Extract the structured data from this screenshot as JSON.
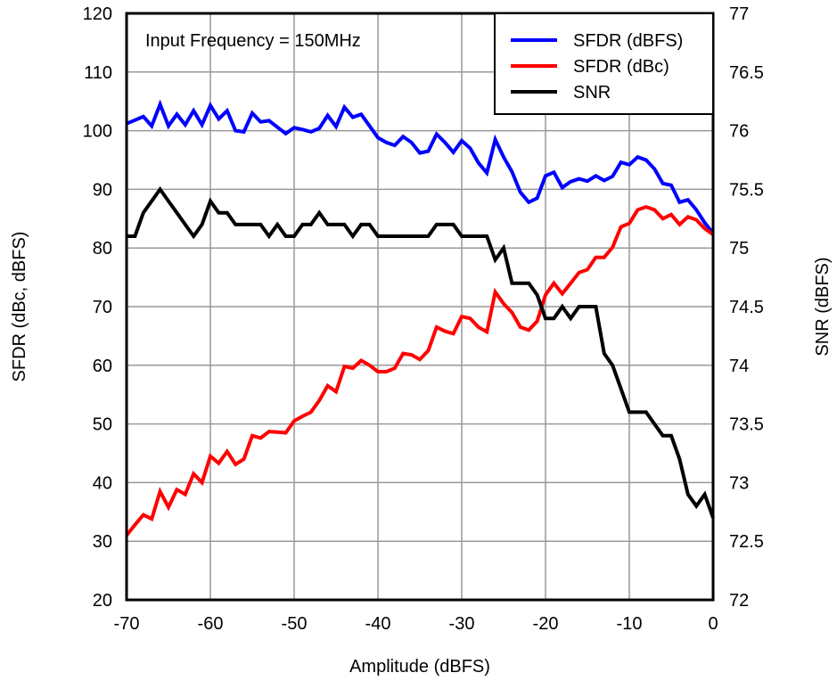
{
  "chart_data": {
    "type": "line",
    "annotation": "Input Frequency = 150MHz",
    "xlabel": "Amplitude (dBFS)",
    "ylabel": "SFDR (dBc, dBFS)",
    "y2label": "SNR (dBFS)",
    "xlim": [
      -70,
      0
    ],
    "ylim": [
      20,
      120
    ],
    "y2lim": [
      72,
      77
    ],
    "xticks": [
      -70,
      -60,
      -50,
      -40,
      -30,
      -20,
      -10,
      0
    ],
    "yticks": [
      20,
      30,
      40,
      50,
      60,
      70,
      80,
      90,
      100,
      110,
      120
    ],
    "y2ticks": [
      "72",
      "72.5",
      "73",
      "73.5",
      "74",
      "74.5",
      "75",
      "75.5",
      "76",
      "76.5",
      "77"
    ],
    "grid": true,
    "legend_position": "top-right",
    "x": [
      -70,
      -69,
      -68,
      -67,
      -66,
      -65,
      -64,
      -63,
      -62,
      -61,
      -60,
      -59,
      -58,
      -57,
      -56,
      -55,
      -54,
      -53,
      -52,
      -51,
      -50,
      -49,
      -48,
      -47,
      -46,
      -45,
      -44,
      -43,
      -42,
      -41,
      -40,
      -39,
      -38,
      -37,
      -36,
      -35,
      -34,
      -33,
      -32,
      -31,
      -30,
      -29,
      -28,
      -27,
      -26,
      -25,
      -24,
      -23,
      -22,
      -21,
      -20,
      -19,
      -18,
      -17,
      -16,
      -15,
      -14,
      -13,
      -12,
      -11,
      -10,
      -9,
      -8,
      -7,
      -6,
      -5,
      -4,
      -3,
      -2,
      -1,
      0
    ],
    "series": [
      {
        "name": "SFDR (dBFS)",
        "color": "#0000ff",
        "axis": "left",
        "values": [
          101.2,
          101.8,
          102.4,
          100.8,
          104.5,
          100.8,
          102.8,
          101,
          103.4,
          101,
          104.3,
          102,
          103.4,
          100,
          99.8,
          103,
          101.5,
          101.7,
          100.6,
          99.5,
          100.5,
          100.2,
          99.8,
          100.4,
          102.6,
          100.7,
          104,
          102.3,
          102.8,
          100.8,
          98.8,
          98,
          97.5,
          99,
          98,
          96.2,
          96.5,
          99.4,
          98,
          96.3,
          98.3,
          97,
          94.5,
          92.8,
          98.5,
          95.5,
          93,
          89.5,
          87.8,
          88.5,
          92.3,
          92.9,
          90.3,
          91.3,
          91.8,
          91.4,
          92.3,
          91.5,
          92.2,
          94.6,
          94.2,
          95.5,
          95,
          93.5,
          91,
          90.7,
          87.8,
          88.2,
          86.5,
          84.3,
          82.5
        ]
      },
      {
        "name": "SFDR (dBc)",
        "color": "#ff0000",
        "axis": "left",
        "values": [
          31,
          32.8,
          34.5,
          33.8,
          38.5,
          35.8,
          38.8,
          38,
          41.5,
          40,
          44.5,
          43.3,
          45.3,
          43.1,
          44,
          48,
          47.6,
          48.7,
          48.6,
          48.5,
          50.5,
          51.3,
          52,
          54,
          56.5,
          55.5,
          59.8,
          59.5,
          60.8,
          60,
          58.9,
          58.9,
          59.5,
          62,
          61.8,
          61,
          62.5,
          66.5,
          65.8,
          65.4,
          68.3,
          68,
          66.5,
          65.7,
          72.5,
          70.5,
          69,
          66.5,
          66,
          67.5,
          72,
          74,
          72.2,
          74,
          75.8,
          76.3,
          78.4,
          78.4,
          80.1,
          83.6,
          84.2,
          86.5,
          87,
          86.5,
          85,
          85.7,
          84,
          85.3,
          84.8,
          83.3,
          82.3
        ]
      },
      {
        "name": "SNR",
        "color": "#000000",
        "axis": "right",
        "values": [
          75.1,
          75.1,
          75.3,
          75.4,
          75.5,
          75.4,
          75.3,
          75.2,
          75.1,
          75.2,
          75.4,
          75.3,
          75.3,
          75.2,
          75.2,
          75.2,
          75.2,
          75.1,
          75.2,
          75.1,
          75.1,
          75.2,
          75.2,
          75.3,
          75.2,
          75.2,
          75.2,
          75.1,
          75.2,
          75.2,
          75.1,
          75.1,
          75.1,
          75.1,
          75.1,
          75.1,
          75.1,
          75.2,
          75.2,
          75.2,
          75.1,
          75.1,
          75.1,
          75.1,
          74.9,
          75.0,
          74.7,
          74.7,
          74.7,
          74.6,
          74.4,
          74.4,
          74.5,
          74.4,
          74.5,
          74.5,
          74.5,
          74.1,
          74.0,
          73.8,
          73.6,
          73.6,
          73.6,
          73.5,
          73.4,
          73.4,
          73.2,
          72.9,
          72.8,
          72.9,
          72.7
        ]
      }
    ]
  }
}
